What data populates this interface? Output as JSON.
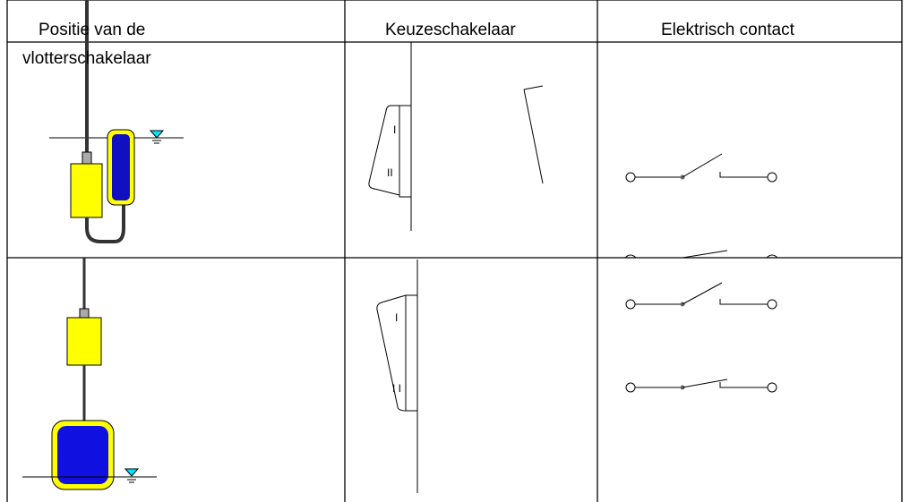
{
  "header": {
    "columns": [
      {
        "lines": [
          "Positie van de",
          "vlotterschakelaar"
        ]
      },
      {
        "lines": [
          "Keuzeschakelaar"
        ]
      },
      {
        "lines": [
          "Elektrisch contact"
        ]
      }
    ]
  },
  "rows": [
    {
      "switch_labels": [
        "I",
        "II"
      ]
    },
    {
      "switch_labels": [
        "I",
        "I I"
      ]
    }
  ]
}
